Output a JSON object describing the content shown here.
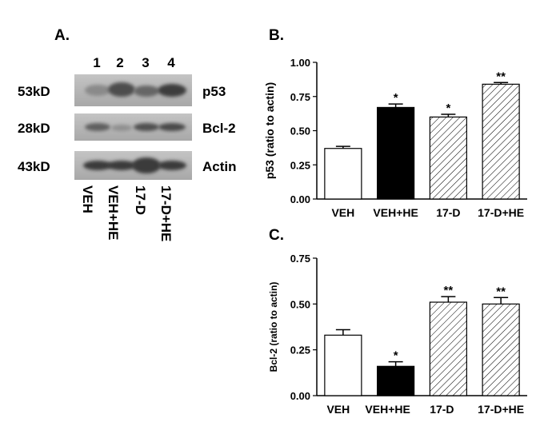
{
  "panels": {
    "a": {
      "label": "A.",
      "lane_numbers": [
        "1",
        "2",
        "3",
        "4"
      ]
    },
    "b": {
      "label": "B."
    },
    "c": {
      "label": "C."
    }
  },
  "blots": [
    {
      "size": "53kD",
      "protein": "p53"
    },
    {
      "size": "28kD",
      "protein": "Bcl-2"
    },
    {
      "size": "43kD",
      "protein": "Actin"
    }
  ],
  "lanes": [
    "VEH",
    "VEH+HE",
    "17-D",
    "17-D+HE"
  ],
  "fill_styles": [
    "white",
    "black",
    "hatch",
    "hatch"
  ],
  "colors": {
    "bar_outline": "#000000",
    "solid_fill": "#000000",
    "open_fill": "#ffffff",
    "blot_background": "#b4b4b4"
  },
  "chart_data": [
    {
      "panel": "B",
      "type": "bar",
      "categories": [
        "VEH",
        "VEH+HE",
        "17-D",
        "17-D+HE"
      ],
      "values": [
        0.37,
        0.67,
        0.6,
        0.84
      ],
      "errors": [
        0.015,
        0.025,
        0.02,
        0.012
      ],
      "annotations": [
        "",
        "*",
        "*",
        "**"
      ],
      "ylabel": "p53 (ratio to actin)",
      "ylim": [
        0,
        1.0
      ],
      "yticks": [
        "0.00",
        "0.25",
        "0.50",
        "0.75",
        "1.00"
      ]
    },
    {
      "panel": "C",
      "type": "bar",
      "categories": [
        "VEH",
        "VEH+HE",
        "17-D",
        "17-D+HE"
      ],
      "values": [
        0.33,
        0.16,
        0.51,
        0.5
      ],
      "errors": [
        0.03,
        0.025,
        0.03,
        0.035
      ],
      "annotations": [
        "",
        "*",
        "**",
        "**"
      ],
      "ylabel": "Bcl-2 (ratio to actin)",
      "ylim": [
        0,
        0.75
      ],
      "yticks": [
        "0.00",
        "0.25",
        "0.50",
        "0.75"
      ]
    }
  ]
}
